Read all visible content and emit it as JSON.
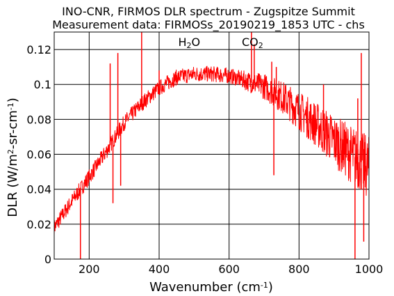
{
  "chart_data": {
    "type": "line",
    "title": "INO-CNR, FIRMOS DLR spectrum - Zugspitze Summit",
    "subtitle": "Measurement data: FIRMOSs_20190219_1853 UTC - chs",
    "xlabel_parts": [
      "Wavenumber (cm",
      "-1",
      ")"
    ],
    "ylabel_parts": [
      "DLR (W/m",
      "2",
      "-sr-cm",
      "-1",
      ")"
    ],
    "xlim": [
      100,
      1000
    ],
    "ylim": [
      0,
      0.13
    ],
    "x_ticks": [
      200,
      400,
      600,
      800,
      1000
    ],
    "x_tick_labels": [
      "200",
      "400",
      "600",
      "800",
      "1000"
    ],
    "y_ticks": [
      0,
      0.02,
      0.04,
      0.06,
      0.08,
      0.1,
      0.12
    ],
    "y_tick_labels": [
      "0",
      "0.02",
      "0.04",
      "0.06",
      "0.08",
      "0.1",
      "0.12"
    ],
    "grid": true,
    "annotations": [
      {
        "parts": [
          "H",
          "2",
          "O"
        ],
        "x": 486,
        "y": 0.122
      },
      {
        "parts": [
          "CO",
          "2"
        ],
        "x": 667,
        "y": 0.122
      }
    ],
    "series": [
      {
        "color": "#ff0000",
        "envelope": {
          "x": [
            100,
            120,
            150,
            200,
            250,
            300,
            350,
            400,
            450,
            500,
            550,
            600,
            650,
            680,
            700,
            750,
            800,
            850,
            900,
            950,
            1000
          ],
          "y": [
            0.018,
            0.024,
            0.033,
            0.047,
            0.062,
            0.078,
            0.089,
            0.098,
            0.104,
            0.106,
            0.106,
            0.105,
            0.102,
            0.1,
            0.099,
            0.093,
            0.085,
            0.077,
            0.068,
            0.06,
            0.052
          ]
        },
        "spikes": [
          {
            "x": 175,
            "y": 0.0
          },
          {
            "x": 260,
            "y": 0.112
          },
          {
            "x": 268,
            "y": 0.032
          },
          {
            "x": 282,
            "y": 0.118
          },
          {
            "x": 290,
            "y": 0.042
          },
          {
            "x": 350,
            "y": 0.13
          },
          {
            "x": 400,
            "y": 0.108
          },
          {
            "x": 664,
            "y": 0.13
          },
          {
            "x": 672,
            "y": 0.123
          },
          {
            "x": 722,
            "y": 0.113
          },
          {
            "x": 728,
            "y": 0.048
          },
          {
            "x": 735,
            "y": 0.11
          },
          {
            "x": 870,
            "y": 0.1
          },
          {
            "x": 912,
            "y": 0.07
          },
          {
            "x": 960,
            "y": 0.0
          },
          {
            "x": 968,
            "y": 0.092
          },
          {
            "x": 978,
            "y": 0.118
          },
          {
            "x": 985,
            "y": 0.01
          }
        ]
      }
    ]
  }
}
